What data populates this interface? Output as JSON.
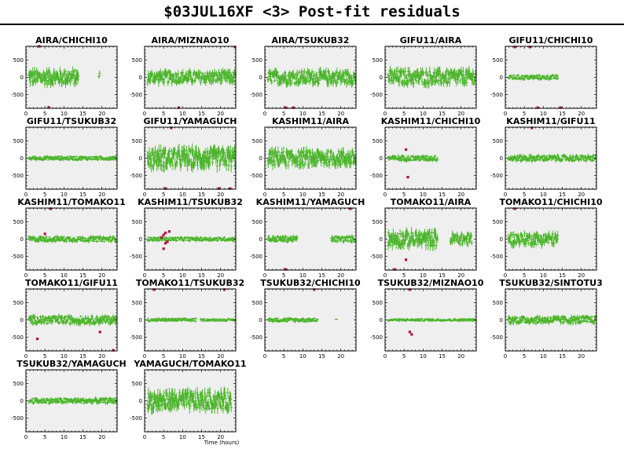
{
  "page": {
    "title": "$03JUL16XF <3> Post-fit residuals"
  },
  "colors": {
    "good": "#4bb52a",
    "flagged": "#b0103a",
    "panel_bg": "#efefef",
    "frame": "#000000"
  },
  "chart_data": {
    "type": "scatter",
    "xlabel": "Time (hours)",
    "ylabel": "",
    "xlim": [
      0,
      24
    ],
    "ylim": [
      -900,
      900
    ],
    "xticks": [
      0,
      5,
      10,
      15,
      20
    ],
    "yticks": [
      500,
      0,
      -500
    ],
    "panels": [
      {
        "name": "AIRA/CHICHI10",
        "segments": [
          [
            0.8,
            13.8,
            220
          ],
          [
            19.2,
            19.4,
            150
          ]
        ],
        "flagged": [
          [
            6,
            -870
          ],
          [
            3.5,
            920
          ]
        ]
      },
      {
        "name": "AIRA/MIZNAO10",
        "segments": [
          [
            0.8,
            23.8,
            180
          ]
        ],
        "flagged": [
          [
            9,
            -880
          ],
          [
            23.8,
            880
          ]
        ]
      },
      {
        "name": "AIRA/TSUKUB32",
        "segments": [
          [
            0.8,
            23.8,
            200
          ]
        ],
        "flagged": [
          [
            5.5,
            -880
          ],
          [
            7.5,
            -880
          ]
        ]
      },
      {
        "name": "GIFU11/AIRA",
        "segments": [
          [
            0.8,
            23.8,
            220
          ]
        ],
        "flagged": []
      },
      {
        "name": "GIFU11/CHICHI10",
        "segments": [
          [
            0.8,
            13.8,
            70
          ]
        ],
        "flagged": [
          [
            2.5,
            880
          ],
          [
            6.5,
            880
          ],
          [
            8.5,
            -880
          ],
          [
            14.5,
            -880
          ]
        ]
      },
      {
        "name": "GIFU11/TSUKUB32",
        "segments": [
          [
            0.8,
            23.8,
            60
          ]
        ],
        "flagged": []
      },
      {
        "name": "GIFU11/YAMAGUCH",
        "segments": [
          [
            0.8,
            23.8,
            280
          ]
        ],
        "flagged": [
          [
            7,
            880
          ],
          [
            5.5,
            -880
          ],
          [
            19.5,
            -880
          ],
          [
            22.5,
            -880
          ]
        ]
      },
      {
        "name": "KASHIM11/AIRA",
        "segments": [
          [
            0.8,
            23.8,
            230
          ]
        ],
        "flagged": []
      },
      {
        "name": "KASHIM11/CHICHI10",
        "segments": [
          [
            0.8,
            13.8,
            80
          ]
        ],
        "flagged": [
          [
            5.5,
            250
          ],
          [
            6,
            -550
          ]
        ]
      },
      {
        "name": "KASHIM11/GIFU11",
        "segments": [
          [
            0.8,
            23.8,
            90
          ]
        ],
        "flagged": [
          [
            7,
            880
          ]
        ]
      },
      {
        "name": "KASHIM11/TOMAKO11",
        "segments": [
          [
            0.8,
            23.8,
            80
          ]
        ],
        "flagged": [
          [
            5,
            150
          ],
          [
            6.5,
            880
          ]
        ]
      },
      {
        "name": "KASHIM11/TSUKUB32",
        "segments": [
          [
            0.8,
            23.8,
            60
          ]
        ],
        "flagged": [
          [
            4.5,
            50
          ],
          [
            5,
            120
          ],
          [
            5.5,
            180
          ],
          [
            6,
            -80
          ],
          [
            6.5,
            220
          ],
          [
            5,
            -280
          ],
          [
            5.5,
            -120
          ]
        ]
      },
      {
        "name": "KASHIM11/YAMAGUCH",
        "segments": [
          [
            0.8,
            8.5,
            90
          ],
          [
            17.5,
            23.8,
            90
          ]
        ],
        "flagged": [
          [
            5.5,
            -880
          ],
          [
            22.5,
            880
          ]
        ]
      },
      {
        "name": "TOMAKO11/AIRA",
        "segments": [
          [
            0.8,
            13.8,
            230
          ],
          [
            17.2,
            22.8,
            180
          ]
        ],
        "flagged": [
          [
            2.5,
            -880
          ],
          [
            5.5,
            -600
          ]
        ]
      },
      {
        "name": "TOMAKO11/CHICHI10",
        "segments": [
          [
            0.8,
            13.8,
            180
          ]
        ],
        "flagged": [
          [
            2.5,
            880
          ]
        ]
      },
      {
        "name": "TOMAKO11/GIFU11",
        "segments": [
          [
            0.8,
            23.8,
            120
          ]
        ],
        "flagged": [
          [
            3,
            -550
          ],
          [
            19.5,
            -350
          ],
          [
            23,
            -880
          ]
        ]
      },
      {
        "name": "TOMAKO11/TSUKUB32",
        "segments": [
          [
            0.8,
            13.5,
            50
          ],
          [
            14.8,
            23.8,
            40
          ]
        ],
        "flagged": [
          [
            2.5,
            880
          ],
          [
            21,
            880
          ]
        ]
      },
      {
        "name": "TSUKUB32/CHICHI10",
        "segments": [
          [
            0.8,
            13.8,
            60
          ],
          [
            18.7,
            18.9,
            30
          ]
        ],
        "flagged": [
          [
            13,
            880
          ]
        ]
      },
      {
        "name": "TSUKUB32/MIZNAO10",
        "segments": [
          [
            0.8,
            23.8,
            40
          ]
        ],
        "flagged": [
          [
            6.5,
            -350
          ],
          [
            7,
            -420
          ],
          [
            6.5,
            880
          ]
        ]
      },
      {
        "name": "TSUKUB32/SINTOTU3",
        "segments": [
          [
            0.8,
            23.8,
            110
          ]
        ],
        "flagged": []
      },
      {
        "name": "TSUKUB32/YAMAGUCH",
        "segments": [
          [
            0.8,
            23.8,
            80
          ]
        ],
        "flagged": []
      },
      {
        "name": "YAMAGUCH/TOMAKO11",
        "segments": [
          [
            0.8,
            22.8,
            270
          ]
        ],
        "flagged": []
      }
    ]
  }
}
